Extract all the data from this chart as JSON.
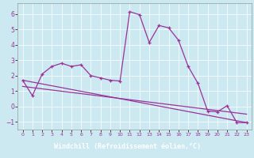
{
  "bg_color": "#cce8f0",
  "line_color": "#993399",
  "xlabel": "Windchill (Refroidissement éolien,°C)",
  "xlim": [
    -0.5,
    23.5
  ],
  "ylim": [
    -1.5,
    6.7
  ],
  "yticks": [
    -1,
    0,
    1,
    2,
    3,
    4,
    5,
    6
  ],
  "xticks": [
    0,
    1,
    2,
    3,
    4,
    5,
    6,
    7,
    8,
    9,
    10,
    11,
    12,
    13,
    14,
    15,
    16,
    17,
    18,
    19,
    20,
    21,
    22,
    23
  ],
  "series": [
    [
      0,
      1.7
    ],
    [
      1,
      0.7
    ],
    [
      2,
      2.1
    ],
    [
      3,
      2.6
    ],
    [
      4,
      2.8
    ],
    [
      5,
      2.6
    ],
    [
      6,
      2.7
    ],
    [
      7,
      2.0
    ],
    [
      8,
      1.85
    ],
    [
      9,
      1.7
    ],
    [
      10,
      1.65
    ],
    [
      11,
      6.15
    ],
    [
      12,
      5.95
    ],
    [
      13,
      4.15
    ],
    [
      14,
      5.25
    ],
    [
      15,
      5.1
    ],
    [
      16,
      4.3
    ],
    [
      17,
      2.6
    ],
    [
      18,
      1.5
    ],
    [
      19,
      -0.3
    ],
    [
      20,
      -0.35
    ],
    [
      21,
      0.05
    ],
    [
      22,
      -1.05
    ],
    [
      23,
      -1.05
    ]
  ],
  "line2": [
    [
      0,
      1.7
    ],
    [
      23,
      -1.05
    ]
  ],
  "line3": [
    [
      0,
      1.3
    ],
    [
      23,
      -0.5
    ]
  ],
  "xlabel_bg": "#660066",
  "xlabel_fg": "#ffffff",
  "grid_color": "#ffffff",
  "spine_color": "#999999"
}
